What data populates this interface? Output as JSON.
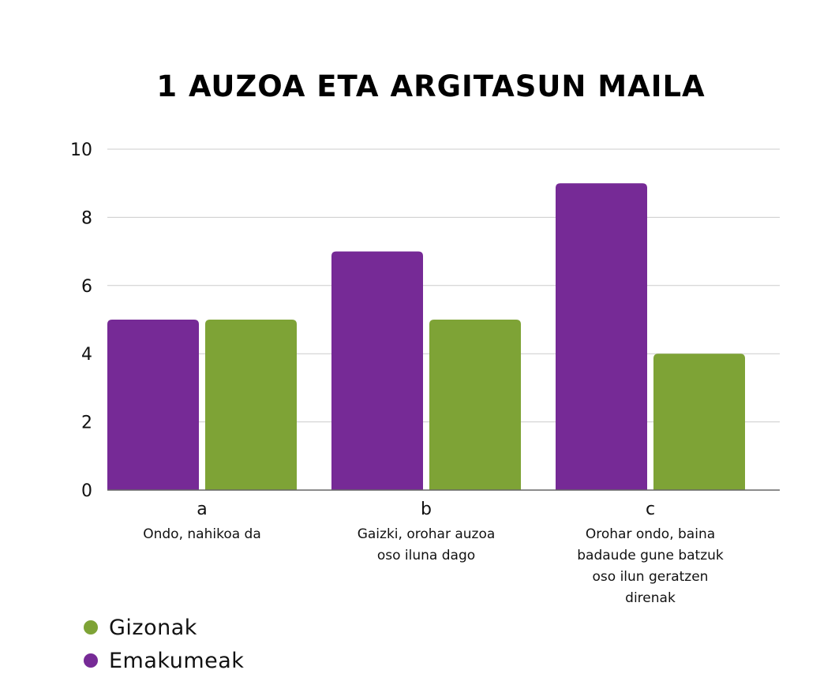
{
  "chart_data": {
    "type": "bar",
    "title": "1 AUZOA ETA ARGITASUN MAILA",
    "categories": [
      "a",
      "b",
      "c"
    ],
    "category_descriptions": [
      [
        "Ondo, nahikoa da"
      ],
      [
        "Gaizki, orohar auzoa",
        "oso iluna dago"
      ],
      [
        "Orohar ondo, baina",
        "badaude gune batzuk",
        "oso ilun geratzen",
        "direnak"
      ]
    ],
    "series": [
      {
        "name": "Emakumeak",
        "color": "#762a96",
        "values": [
          5,
          7,
          9
        ]
      },
      {
        "name": "Gizonak",
        "color": "#7ea336",
        "values": [
          5,
          5,
          4
        ]
      }
    ],
    "ylim": [
      0,
      10
    ],
    "yticks": [
      "0",
      "2",
      "4",
      "6",
      "8",
      "10"
    ],
    "grid": true,
    "legend_placement": "bottom-left",
    "legend": [
      {
        "label": "Gizonak",
        "color": "#7ea336"
      },
      {
        "label": "Emakumeak",
        "color": "#762a96"
      }
    ]
  }
}
